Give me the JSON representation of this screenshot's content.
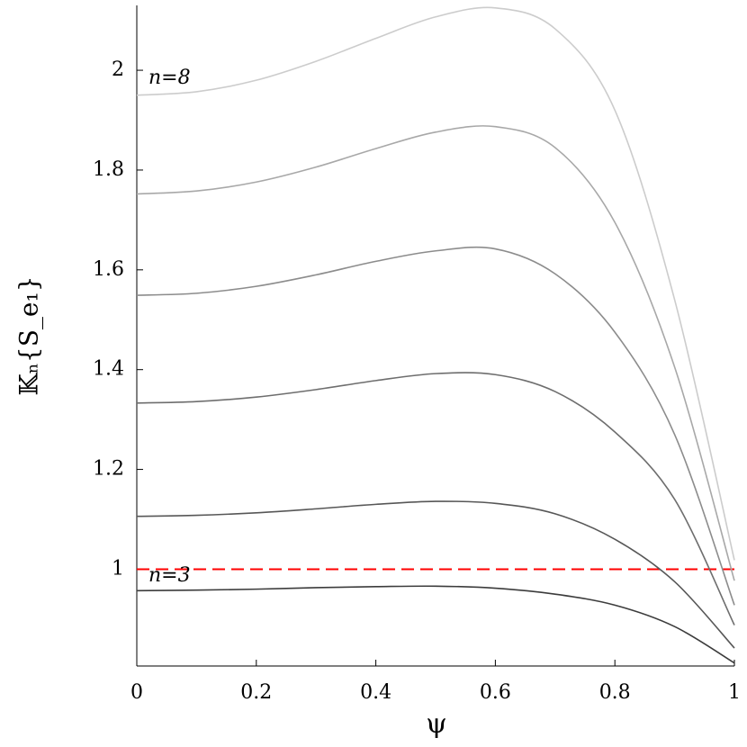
{
  "chart_data": {
    "type": "line",
    "x_label": "ψ",
    "y_label": "𝕂ₙ{S_e₁}",
    "annotations": [
      "n=8",
      "n=3"
    ],
    "x": [
      0,
      0.1,
      0.2,
      0.3,
      0.4,
      0.5,
      0.6,
      0.7,
      0.8,
      0.9,
      1
    ],
    "series": [
      {
        "color": "#3c3c3c",
        "values": [
          0.957,
          0.958,
          0.96,
          0.963,
          0.965,
          0.966,
          0.962,
          0.95,
          0.928,
          0.885,
          0.812
        ]
      },
      {
        "color": "#575757",
        "values": [
          1.106,
          1.108,
          1.113,
          1.121,
          1.13,
          1.136,
          1.132,
          1.111,
          1.06,
          0.975,
          0.842
        ]
      },
      {
        "color": "#6e6e6e",
        "values": [
          1.333,
          1.336,
          1.345,
          1.36,
          1.378,
          1.392,
          1.39,
          1.356,
          1.275,
          1.14,
          0.888
        ]
      },
      {
        "color": "#8c8c8c",
        "values": [
          1.549,
          1.553,
          1.567,
          1.59,
          1.617,
          1.638,
          1.642,
          1.592,
          1.475,
          1.27,
          0.928
        ]
      },
      {
        "color": "#a8a8a8",
        "values": [
          1.752,
          1.758,
          1.776,
          1.806,
          1.843,
          1.876,
          1.887,
          1.845,
          1.695,
          1.405,
          0.977
        ]
      },
      {
        "color": "#cccccc",
        "values": [
          1.95,
          1.957,
          1.98,
          2.018,
          2.064,
          2.107,
          2.125,
          2.083,
          1.92,
          1.54,
          1.018
        ]
      }
    ],
    "reference_line": {
      "value": 1,
      "color": "#ff0000",
      "dashed": true
    },
    "xlim": [
      0,
      1
    ],
    "xticks": [
      0,
      0.2,
      0.4,
      0.6,
      0.8,
      1
    ],
    "ylim": [
      0.806,
      2.13
    ],
    "yticks": [
      1,
      1.2,
      1.4,
      1.6,
      1.8,
      2
    ],
    "grid": false
  }
}
